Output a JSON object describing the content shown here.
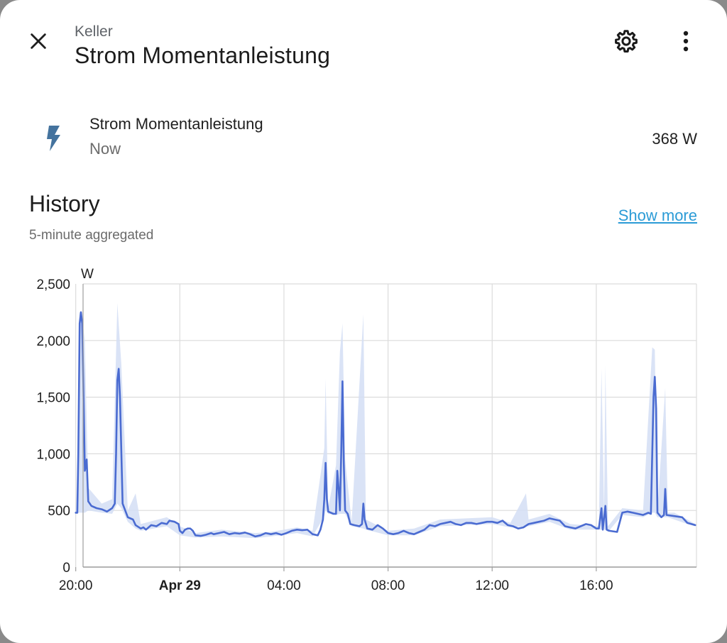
{
  "header": {
    "breadcrumb": "Keller",
    "title": "Strom Momentanleistung",
    "icons": {
      "close": "close-icon",
      "settings": "gear-icon",
      "more": "more-vert-icon"
    }
  },
  "entity": {
    "icon": "flash-icon",
    "name": "Strom Momentanleistung",
    "time": "Now",
    "state": "368 W"
  },
  "history": {
    "title": "History",
    "subtitle": "5-minute aggregated",
    "show_more": "Show more"
  },
  "colors": {
    "line": "#4a6bd1",
    "band": "#d4def4",
    "icon": "#44739e",
    "link": "#2b9bd6"
  },
  "chart_data": {
    "type": "line",
    "unit_label": "W",
    "x_unit": "hours since 20:00 on Apr 28",
    "xlim": [
      -0.1,
      23.85
    ],
    "ylim": [
      0,
      2500
    ],
    "yticks": [
      {
        "v": 0,
        "label": "0"
      },
      {
        "v": 500,
        "label": "500"
      },
      {
        "v": 1000,
        "label": "1,000"
      },
      {
        "v": 1500,
        "label": "1,500"
      },
      {
        "v": 2000,
        "label": "2,000"
      },
      {
        "v": 2500,
        "label": "2,500"
      }
    ],
    "xticks": [
      {
        "t": 0,
        "label": "20:00",
        "bold": false
      },
      {
        "t": 4,
        "label": "Apr 29",
        "bold": true
      },
      {
        "t": 8,
        "label": "04:00",
        "bold": false
      },
      {
        "t": 12,
        "label": "08:00",
        "bold": false
      },
      {
        "t": 16,
        "label": "12:00",
        "bold": false
      },
      {
        "t": 20,
        "label": "16:00",
        "bold": false
      }
    ],
    "grid": true,
    "mean": [
      [
        0.0,
        480
      ],
      [
        0.06,
        480
      ],
      [
        0.1,
        1000
      ],
      [
        0.15,
        2150
      ],
      [
        0.2,
        2250
      ],
      [
        0.25,
        2150
      ],
      [
        0.3,
        1500
      ],
      [
        0.35,
        850
      ],
      [
        0.42,
        950
      ],
      [
        0.48,
        580
      ],
      [
        0.6,
        540
      ],
      [
        0.8,
        520
      ],
      [
        1.0,
        510
      ],
      [
        1.2,
        490
      ],
      [
        1.4,
        520
      ],
      [
        1.5,
        560
      ],
      [
        1.55,
        1000
      ],
      [
        1.6,
        1650
      ],
      [
        1.65,
        1750
      ],
      [
        1.7,
        1500
      ],
      [
        1.8,
        560
      ],
      [
        2.0,
        440
      ],
      [
        2.2,
        420
      ],
      [
        2.3,
        370
      ],
      [
        2.5,
        340
      ],
      [
        2.6,
        350
      ],
      [
        2.7,
        330
      ],
      [
        2.9,
        370
      ],
      [
        3.1,
        360
      ],
      [
        3.3,
        390
      ],
      [
        3.5,
        380
      ],
      [
        3.6,
        410
      ],
      [
        3.8,
        400
      ],
      [
        3.95,
        380
      ],
      [
        4.0,
        320
      ],
      [
        4.1,
        300
      ],
      [
        4.2,
        330
      ],
      [
        4.3,
        340
      ],
      [
        4.4,
        340
      ],
      [
        4.5,
        320
      ],
      [
        4.6,
        280
      ],
      [
        4.8,
        275
      ],
      [
        5.0,
        285
      ],
      [
        5.2,
        300
      ],
      [
        5.3,
        290
      ],
      [
        5.5,
        300
      ],
      [
        5.7,
        310
      ],
      [
        5.9,
        290
      ],
      [
        6.1,
        300
      ],
      [
        6.3,
        295
      ],
      [
        6.5,
        305
      ],
      [
        6.7,
        290
      ],
      [
        6.9,
        270
      ],
      [
        7.1,
        280
      ],
      [
        7.3,
        300
      ],
      [
        7.5,
        290
      ],
      [
        7.7,
        300
      ],
      [
        7.9,
        285
      ],
      [
        8.1,
        300
      ],
      [
        8.3,
        320
      ],
      [
        8.5,
        330
      ],
      [
        8.7,
        325
      ],
      [
        8.9,
        330
      ],
      [
        9.1,
        290
      ],
      [
        9.3,
        280
      ],
      [
        9.4,
        330
      ],
      [
        9.5,
        420
      ],
      [
        9.55,
        600
      ],
      [
        9.6,
        920
      ],
      [
        9.65,
        600
      ],
      [
        9.7,
        490
      ],
      [
        9.9,
        470
      ],
      [
        10.0,
        470
      ],
      [
        10.05,
        850
      ],
      [
        10.1,
        700
      ],
      [
        10.15,
        500
      ],
      [
        10.2,
        1000
      ],
      [
        10.25,
        1640
      ],
      [
        10.3,
        900
      ],
      [
        10.35,
        500
      ],
      [
        10.45,
        470
      ],
      [
        10.55,
        380
      ],
      [
        10.7,
        370
      ],
      [
        10.9,
        360
      ],
      [
        11.0,
        380
      ],
      [
        11.05,
        560
      ],
      [
        11.1,
        420
      ],
      [
        11.2,
        340
      ],
      [
        11.4,
        330
      ],
      [
        11.6,
        370
      ],
      [
        11.8,
        340
      ],
      [
        12.0,
        300
      ],
      [
        12.2,
        290
      ],
      [
        12.4,
        300
      ],
      [
        12.6,
        320
      ],
      [
        12.8,
        300
      ],
      [
        13.0,
        290
      ],
      [
        13.2,
        310
      ],
      [
        13.4,
        330
      ],
      [
        13.6,
        370
      ],
      [
        13.8,
        360
      ],
      [
        14.0,
        380
      ],
      [
        14.2,
        390
      ],
      [
        14.4,
        400
      ],
      [
        14.6,
        380
      ],
      [
        14.8,
        370
      ],
      [
        15.0,
        390
      ],
      [
        15.2,
        390
      ],
      [
        15.4,
        380
      ],
      [
        15.6,
        390
      ],
      [
        15.8,
        400
      ],
      [
        16.0,
        400
      ],
      [
        16.2,
        390
      ],
      [
        16.4,
        410
      ],
      [
        16.6,
        370
      ],
      [
        16.8,
        360
      ],
      [
        17.0,
        340
      ],
      [
        17.2,
        350
      ],
      [
        17.4,
        380
      ],
      [
        17.6,
        390
      ],
      [
        17.8,
        400
      ],
      [
        18.0,
        410
      ],
      [
        18.2,
        430
      ],
      [
        18.4,
        420
      ],
      [
        18.6,
        410
      ],
      [
        18.8,
        360
      ],
      [
        19.0,
        350
      ],
      [
        19.2,
        340
      ],
      [
        19.4,
        360
      ],
      [
        19.6,
        380
      ],
      [
        19.8,
        370
      ],
      [
        20.0,
        340
      ],
      [
        20.1,
        340
      ],
      [
        20.2,
        520
      ],
      [
        20.25,
        330
      ],
      [
        20.35,
        540
      ],
      [
        20.4,
        330
      ],
      [
        20.5,
        320
      ],
      [
        20.8,
        310
      ],
      [
        21.0,
        480
      ],
      [
        21.2,
        490
      ],
      [
        21.4,
        480
      ],
      [
        21.6,
        470
      ],
      [
        21.8,
        460
      ],
      [
        22.0,
        480
      ],
      [
        22.1,
        470
      ],
      [
        22.15,
        1000
      ],
      [
        22.2,
        1500
      ],
      [
        22.25,
        1680
      ],
      [
        22.3,
        1400
      ],
      [
        22.35,
        480
      ],
      [
        22.5,
        440
      ],
      [
        22.6,
        460
      ],
      [
        22.65,
        690
      ],
      [
        22.7,
        460
      ],
      [
        23.0,
        450
      ],
      [
        23.3,
        440
      ],
      [
        23.5,
        390
      ],
      [
        23.8,
        370
      ]
    ],
    "band": [
      [
        0.0,
        470,
        490
      ],
      [
        0.1,
        480,
        1100
      ],
      [
        0.15,
        480,
        2250
      ],
      [
        0.25,
        480,
        2200
      ],
      [
        0.35,
        480,
        2000
      ],
      [
        0.48,
        500,
        700
      ],
      [
        1.0,
        480,
        560
      ],
      [
        1.4,
        470,
        600
      ],
      [
        1.6,
        560,
        2330
      ],
      [
        1.75,
        520,
        1800
      ],
      [
        2.0,
        400,
        500
      ],
      [
        2.3,
        340,
        650
      ],
      [
        2.5,
        320,
        380
      ],
      [
        3.5,
        360,
        440
      ],
      [
        4.0,
        280,
        360
      ],
      [
        4.6,
        260,
        300
      ],
      [
        5.6,
        270,
        330
      ],
      [
        6.9,
        255,
        300
      ],
      [
        7.5,
        270,
        310
      ],
      [
        8.5,
        300,
        350
      ],
      [
        9.1,
        270,
        320
      ],
      [
        9.55,
        450,
        1050
      ],
      [
        9.6,
        500,
        1660
      ],
      [
        9.7,
        470,
        520
      ],
      [
        10.0,
        460,
        900
      ],
      [
        10.15,
        470,
        1900
      ],
      [
        10.25,
        470,
        2150
      ],
      [
        10.35,
        470,
        950
      ],
      [
        10.6,
        360,
        400
      ],
      [
        11.05,
        340,
        2230
      ],
      [
        11.15,
        330,
        420
      ],
      [
        12.0,
        280,
        320
      ],
      [
        13.0,
        280,
        340
      ],
      [
        14.0,
        360,
        420
      ],
      [
        15.0,
        370,
        430
      ],
      [
        16.0,
        380,
        440
      ],
      [
        16.7,
        350,
        390
      ],
      [
        17.3,
        360,
        650
      ],
      [
        17.4,
        360,
        420
      ],
      [
        18.2,
        400,
        470
      ],
      [
        19.0,
        330,
        380
      ],
      [
        20.1,
        330,
        360
      ],
      [
        20.2,
        330,
        1750
      ],
      [
        20.3,
        330,
        500
      ],
      [
        20.35,
        330,
        1780
      ],
      [
        20.45,
        310,
        360
      ],
      [
        21.0,
        460,
        520
      ],
      [
        21.8,
        440,
        500
      ],
      [
        22.15,
        480,
        1940
      ],
      [
        22.25,
        480,
        1920
      ],
      [
        22.35,
        440,
        500
      ],
      [
        22.65,
        440,
        1580
      ],
      [
        22.75,
        440,
        480
      ],
      [
        23.0,
        420,
        480
      ],
      [
        23.5,
        380,
        420
      ],
      [
        23.8,
        360,
        380
      ]
    ]
  }
}
